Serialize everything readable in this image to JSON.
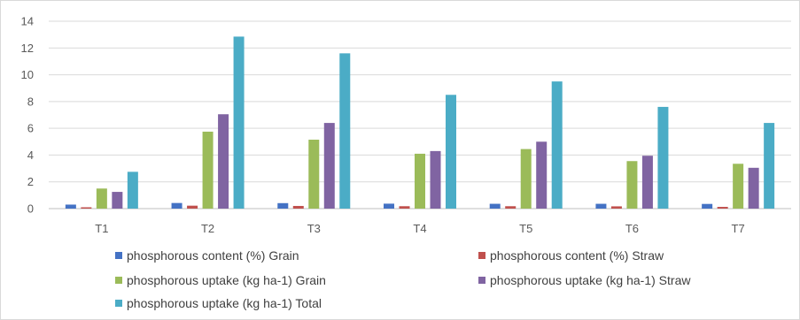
{
  "chart_data": {
    "type": "bar",
    "title": "",
    "xlabel": "",
    "ylabel": "",
    "ylim": [
      0,
      14
    ],
    "y_ticks": [
      "0",
      "2",
      "4",
      "6",
      "8",
      "10",
      "12",
      "14"
    ],
    "grid": true,
    "legend_position": "bottom",
    "categories": [
      "T1",
      "T2",
      "T3",
      "T4",
      "T5",
      "T6",
      "T7"
    ],
    "series": [
      {
        "name": "phosphorous content (%) Grain",
        "color": "#4472c4",
        "values": [
          0.3,
          0.42,
          0.41,
          0.37,
          0.36,
          0.36,
          0.35
        ]
      },
      {
        "name": "phosphorous content (%) Straw",
        "color": "#c0504d",
        "values": [
          0.1,
          0.22,
          0.2,
          0.18,
          0.18,
          0.17,
          0.13
        ]
      },
      {
        "name": "phosphorous uptake (kg ha-1) Grain",
        "color": "#9bbb59",
        "values": [
          1.5,
          5.75,
          5.15,
          4.1,
          4.45,
          3.55,
          3.35
        ]
      },
      {
        "name": "phosphorous uptake (kg ha-1) Straw",
        "color": "#8064a2",
        "values": [
          1.25,
          7.05,
          6.4,
          4.3,
          5.0,
          3.95,
          3.05
        ]
      },
      {
        "name": "phosphorous uptake (kg ha-1) Total",
        "color": "#4bacc6",
        "values": [
          2.75,
          12.85,
          11.6,
          8.5,
          9.5,
          7.6,
          6.4
        ]
      }
    ]
  }
}
